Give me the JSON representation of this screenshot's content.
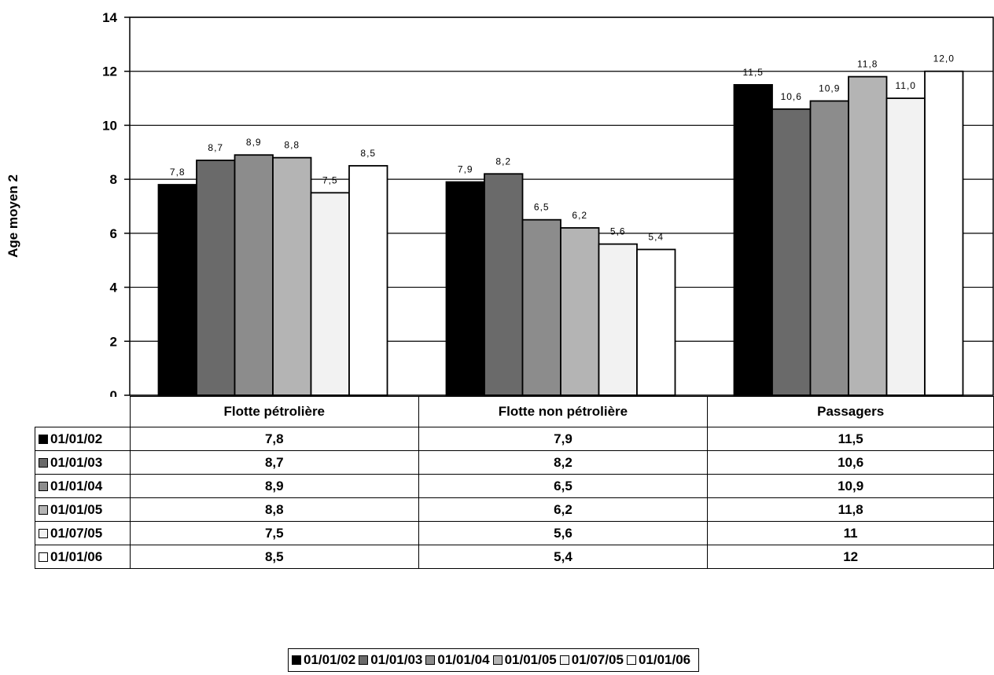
{
  "chart_data": {
    "type": "bar",
    "title": "",
    "xlabel": "",
    "ylabel": "Age moyen 2",
    "ylim": [
      0,
      14
    ],
    "yticks": [
      0,
      2,
      4,
      6,
      8,
      10,
      12,
      14
    ],
    "grid": true,
    "legend_position": "bottom",
    "categories": [
      "Flotte pétrolière",
      "Flotte non pétrolière",
      "Passagers"
    ],
    "series": [
      {
        "name": "01/01/02",
        "values": [
          7.8,
          7.9,
          11.5
        ],
        "labels": [
          "7,8",
          "7,9",
          "11,5"
        ],
        "table_values": [
          "7,8",
          "7,9",
          "11,5"
        ],
        "color": "#000000"
      },
      {
        "name": "01/01/03",
        "values": [
          8.7,
          8.2,
          10.6
        ],
        "labels": [
          "8,7",
          "8,2",
          "10,6"
        ],
        "table_values": [
          "8,7",
          "8,2",
          "10,6"
        ],
        "color": "#6a6a6a"
      },
      {
        "name": "01/01/04",
        "values": [
          8.9,
          6.5,
          10.9
        ],
        "labels": [
          "8,9",
          "6,5",
          "10,9"
        ],
        "table_values": [
          "8,9",
          "6,5",
          "10,9"
        ],
        "color": "#8c8c8c"
      },
      {
        "name": "01/01/05",
        "values": [
          8.8,
          6.2,
          11.8
        ],
        "labels": [
          "8,8",
          "6,2",
          "11,8"
        ],
        "table_values": [
          "8,8",
          "6,2",
          "11,8"
        ],
        "color": "#b4b4b4"
      },
      {
        "name": "01/07/05",
        "values": [
          7.5,
          5.6,
          11.0
        ],
        "labels": [
          "7,5",
          "5,6",
          "11,0"
        ],
        "table_values": [
          "7,5",
          "5,6",
          "11"
        ],
        "color": "#f2f2f2"
      },
      {
        "name": "01/01/06",
        "values": [
          8.5,
          5.4,
          12.0
        ],
        "labels": [
          "8,5",
          "5,4",
          "12,0"
        ],
        "table_values": [
          "8,5",
          "5,4",
          "12"
        ],
        "color": "#ffffff"
      }
    ]
  }
}
